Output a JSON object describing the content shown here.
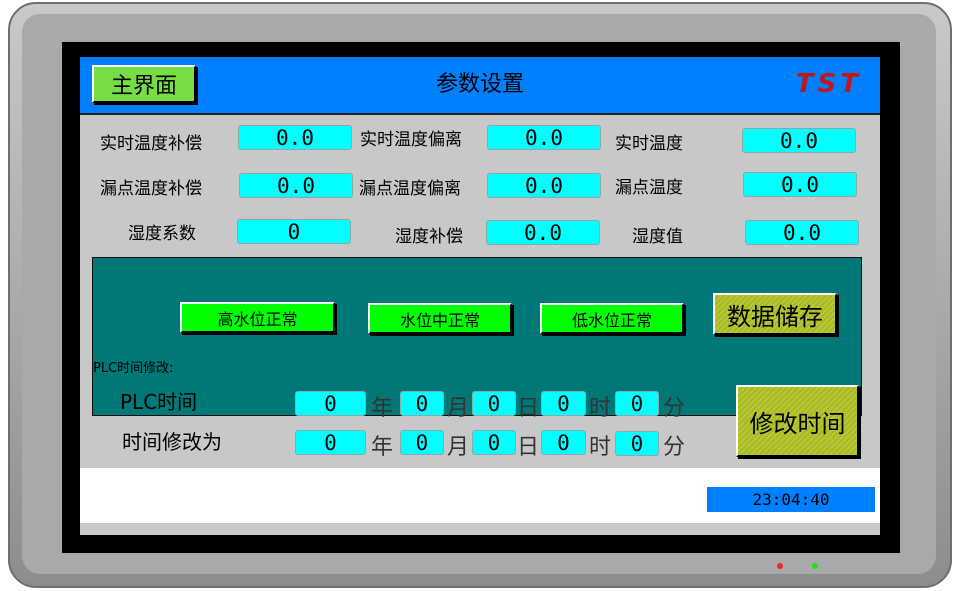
{
  "header": {
    "home_button": "主界面",
    "title": "参数设置",
    "logo": "TST"
  },
  "params": [
    {
      "label": "实时温度补偿",
      "value": "0.0"
    },
    {
      "label": "实时温度偏离",
      "value": "0.0"
    },
    {
      "label": "实时温度",
      "value": "0.0"
    },
    {
      "label": "漏点温度补偿",
      "value": "0.0"
    },
    {
      "label": "漏点温度偏离",
      "value": "0.0"
    },
    {
      "label": "漏点温度",
      "value": "0.0"
    },
    {
      "label": "湿度系数",
      "value": "0"
    },
    {
      "label": "湿度补偿",
      "value": "0.0"
    },
    {
      "label": "湿度值",
      "value": "0.0"
    }
  ],
  "water": {
    "high": "高水位正常",
    "mid": "水位中正常",
    "low": "低水位正常"
  },
  "save_button": "数据储存",
  "plc_section": "PLC时间修改:",
  "plc_time": {
    "label": "PLC时间",
    "year": "0",
    "month": "0",
    "day": "0",
    "hour": "0",
    "minute": "0"
  },
  "new_time": {
    "label": "时间修改为",
    "year": "0",
    "month": "0",
    "day": "0",
    "hour": "0",
    "minute": "0"
  },
  "units": {
    "year": "年",
    "month": "月",
    "day": "日",
    "hour": "时",
    "minute": "分"
  },
  "modify_button": "修改时间",
  "clock": "23:04:40",
  "colors": {
    "header": "#0080ff",
    "panel": "#007878",
    "field": "#00ffff",
    "status_ok": "#00ff00",
    "led_red": "#ff2020",
    "led_green": "#20e020"
  }
}
